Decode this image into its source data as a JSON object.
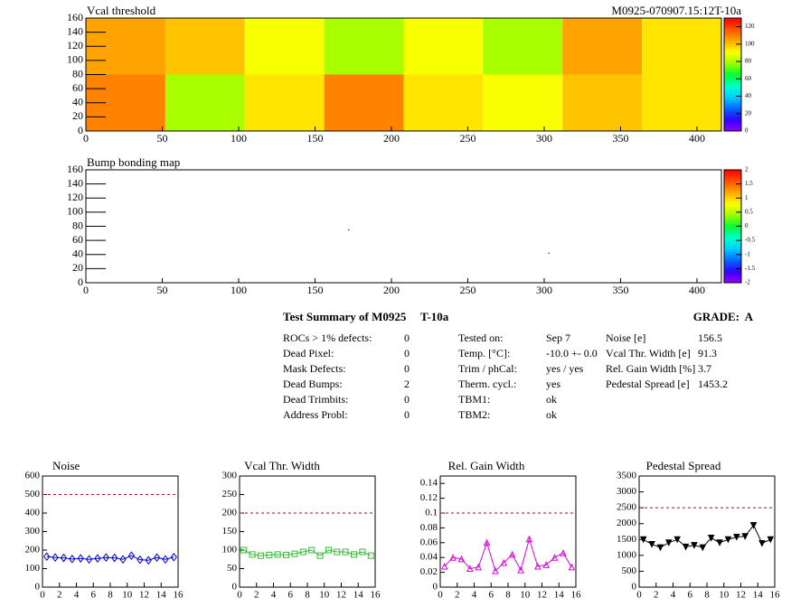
{
  "module_label": "M0925-070907.15:12T-10a",
  "chart_data": [
    {
      "type": "heatmap",
      "title": "Vcal threshold",
      "xbins": [
        0,
        52,
        104,
        156,
        208,
        260,
        312,
        364,
        416
      ],
      "ybins": [
        0,
        80,
        160
      ],
      "values": [
        [
          110,
          80,
          95,
          110,
          95,
          90,
          100,
          95
        ],
        [
          105,
          100,
          90,
          80,
          90,
          80,
          105,
          95
        ]
      ],
      "xlim": [
        0,
        416
      ],
      "ylim": [
        0,
        160
      ],
      "xticks": [
        0,
        50,
        100,
        150,
        200,
        250,
        300,
        350,
        400
      ],
      "yticks": [
        0,
        20,
        40,
        60,
        80,
        100,
        120,
        140,
        160
      ],
      "zlim": [
        0,
        130
      ],
      "zticks": [
        0,
        20,
        40,
        60,
        80,
        100,
        120
      ],
      "palette": [
        "#9900ff",
        "#3300ff",
        "#0066ff",
        "#00ccff",
        "#00ffcc",
        "#00ff33",
        "#99ff00",
        "#ffff00",
        "#ffaa00",
        "#ff5500",
        "#ff0000"
      ]
    },
    {
      "type": "scatter",
      "title": "Bump bonding map",
      "x": [
        172,
        303
      ],
      "y": [
        75,
        42
      ],
      "color": "#000000",
      "xlim": [
        0,
        416
      ],
      "ylim": [
        0,
        160
      ],
      "xticks": [
        0,
        50,
        100,
        150,
        200,
        250,
        300,
        350,
        400
      ],
      "yticks": [
        0,
        20,
        40,
        60,
        80,
        100,
        120,
        140,
        160
      ],
      "zlim": [
        -2,
        2
      ],
      "zticks": [
        -2,
        -1.5,
        -1,
        -0.5,
        0,
        0.5,
        1,
        1.5,
        2
      ],
      "palette": [
        "#9900ff",
        "#3300ff",
        "#0066ff",
        "#00ccff",
        "#00ffcc",
        "#00ff33",
        "#99ff00",
        "#ffff00",
        "#ffaa00",
        "#ff5500",
        "#ff0000"
      ]
    },
    {
      "type": "line",
      "title": "Noise",
      "color": "#0000cc",
      "marker": "diamond",
      "x": [
        0.5,
        1.5,
        2.5,
        3.5,
        4.5,
        5.5,
        6.5,
        7.5,
        8.5,
        9.5,
        10.5,
        11.5,
        12.5,
        13.5,
        14.5,
        15.5
      ],
      "values": [
        165,
        160,
        158,
        152,
        155,
        150,
        155,
        160,
        158,
        150,
        170,
        148,
        145,
        160,
        150,
        162
      ],
      "threshold": 500,
      "xlim": [
        0,
        16
      ],
      "ylim": [
        0,
        600
      ],
      "xticks": [
        0,
        2,
        4,
        6,
        8,
        10,
        12,
        14,
        16
      ],
      "yticks": [
        0,
        100,
        200,
        300,
        400,
        500,
        600
      ]
    },
    {
      "type": "line",
      "title": "Vcal Thr. Width",
      "color": "#33bb33",
      "marker": "square",
      "x": [
        0.5,
        1.5,
        2.5,
        3.5,
        4.5,
        5.5,
        6.5,
        7.5,
        8.5,
        9.5,
        10.5,
        11.5,
        12.5,
        13.5,
        14.5,
        15.5
      ],
      "values": [
        100,
        88,
        85,
        87,
        88,
        87,
        90,
        95,
        100,
        85,
        100,
        95,
        95,
        88,
        95,
        85
      ],
      "threshold": 200,
      "xlim": [
        0,
        16
      ],
      "ylim": [
        0,
        300
      ],
      "xticks": [
        0,
        2,
        4,
        6,
        8,
        10,
        12,
        14,
        16
      ],
      "yticks": [
        0,
        50,
        100,
        150,
        200,
        250,
        300
      ]
    },
    {
      "type": "line",
      "title": "Rel. Gain Width",
      "color": "#dd00dd",
      "marker": "triangle",
      "x": [
        0.5,
        1.5,
        2.5,
        3.5,
        4.5,
        5.5,
        6.5,
        7.5,
        8.5,
        9.5,
        10.5,
        11.5,
        12.5,
        13.5,
        14.5,
        15.5
      ],
      "values": [
        0.028,
        0.04,
        0.038,
        0.025,
        0.027,
        0.06,
        0.022,
        0.033,
        0.044,
        0.023,
        0.065,
        0.028,
        0.03,
        0.04,
        0.046,
        0.027
      ],
      "threshold": 0.1,
      "xlim": [
        0,
        16
      ],
      "ylim": [
        0,
        0.15
      ],
      "xticks": [
        0,
        2,
        4,
        6,
        8,
        10,
        12,
        14,
        16
      ],
      "yticks": [
        0,
        0.02,
        0.04,
        0.06,
        0.08,
        0.1,
        0.12,
        0.14
      ]
    },
    {
      "type": "line",
      "title": "Pedestal Spread",
      "color": "#000000",
      "marker": "triangle-down",
      "x": [
        0.5,
        1.5,
        2.5,
        3.5,
        4.5,
        5.5,
        6.5,
        7.5,
        8.5,
        9.5,
        10.5,
        11.5,
        12.5,
        13.5,
        14.5,
        15.5
      ],
      "values": [
        1500,
        1350,
        1250,
        1400,
        1500,
        1270,
        1320,
        1250,
        1550,
        1400,
        1500,
        1580,
        1600,
        1950,
        1380,
        1500
      ],
      "threshold": 2500,
      "xlim": [
        0,
        16
      ],
      "ylim": [
        0,
        3500
      ],
      "xticks": [
        0,
        2,
        4,
        6,
        8,
        10,
        12,
        14,
        16
      ],
      "yticks": [
        0,
        500,
        1000,
        1500,
        2000,
        2500,
        3000,
        3500
      ]
    }
  ],
  "summary": {
    "title": "Test Summary of M0925",
    "test": "T-10a",
    "grade_label": "GRADE:",
    "grade": "A",
    "left": [
      [
        "ROCs > 1% defects:",
        "0"
      ],
      [
        "Dead Pixel:",
        "0"
      ],
      [
        "Mask Defects:",
        "0"
      ],
      [
        "Dead Bumps:",
        "2"
      ],
      [
        "Dead Trimbits:",
        "0"
      ],
      [
        "Address Probl:",
        "0"
      ]
    ],
    "middle": [
      [
        "Tested on:",
        "Sep 7"
      ],
      [
        "Temp. [°C]:",
        "-10.0 +- 0.0"
      ],
      [
        "Trim / phCal:",
        "yes / yes"
      ],
      [
        "Therm. cycl.:",
        "yes"
      ],
      [
        "TBM1:",
        "ok"
      ],
      [
        "TBM2:",
        "ok"
      ]
    ],
    "right": [
      [
        "Noise [e]",
        "156.5"
      ],
      [
        "Vcal Thr. Width [e]",
        "91.3"
      ],
      [
        "Rel. Gain Width [%]",
        "3.7"
      ],
      [
        "Pedestal Spread [e]",
        "1453.2"
      ]
    ]
  }
}
